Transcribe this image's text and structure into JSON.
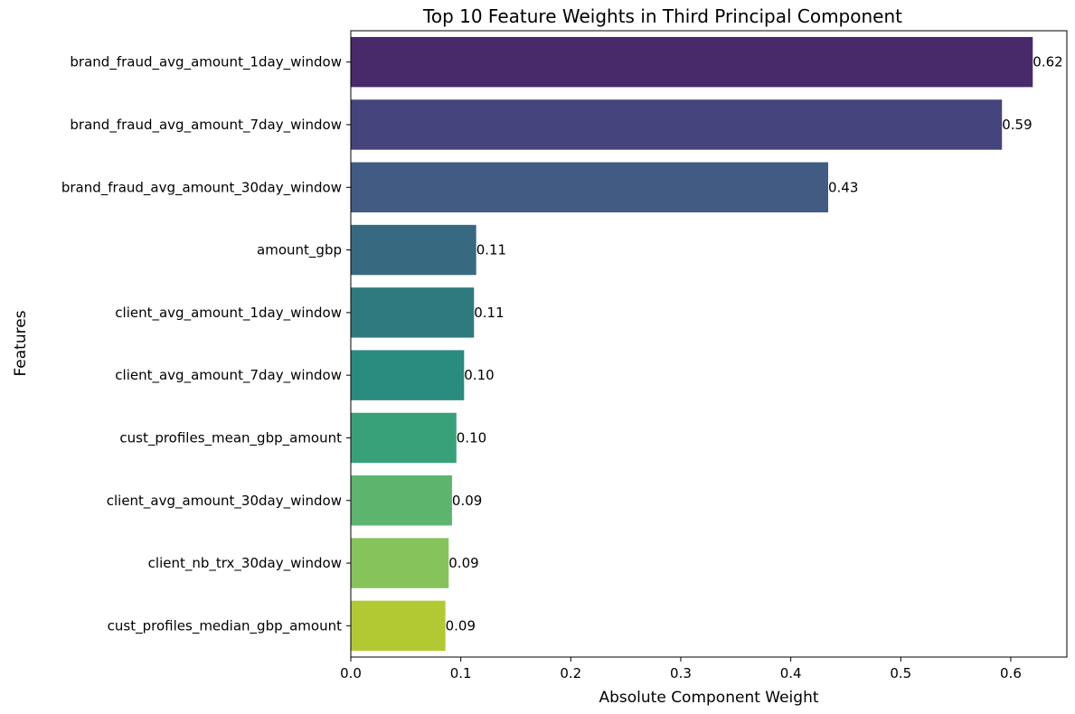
{
  "chart_data": {
    "type": "bar",
    "orientation": "horizontal",
    "title": "Top 10 Feature Weights in Third Principal Component",
    "xlabel": "Absolute Component Weight",
    "ylabel": "Features",
    "xlim": [
      0,
      0.651
    ],
    "xticks": [
      "0.0",
      "0.1",
      "0.2",
      "0.3",
      "0.4",
      "0.5",
      "0.6"
    ],
    "grid": false,
    "categories": [
      "brand_fraud_avg_amount_1day_window",
      "brand_fraud_avg_amount_7day_window",
      "brand_fraud_avg_amount_30day_window",
      "amount_gbp",
      "client_avg_amount_1day_window",
      "client_avg_amount_7day_window",
      "cust_profiles_mean_gbp_amount",
      "client_avg_amount_30day_window",
      "client_nb_trx_30day_window",
      "cust_profiles_median_gbp_amount"
    ],
    "values": [
      0.62,
      0.592,
      0.434,
      0.114,
      0.112,
      0.103,
      0.096,
      0.092,
      0.089,
      0.086
    ],
    "value_labels": [
      "0.62",
      "0.59",
      "0.43",
      "0.11",
      "0.11",
      "0.10",
      "0.10",
      "0.09",
      "0.09",
      "0.09"
    ],
    "colors": [
      "#482a6b",
      "#46447c",
      "#425b82",
      "#376a80",
      "#2e7a7f",
      "#2a8b7f",
      "#38a179",
      "#5db56d",
      "#86c35a",
      "#b2c934"
    ]
  }
}
